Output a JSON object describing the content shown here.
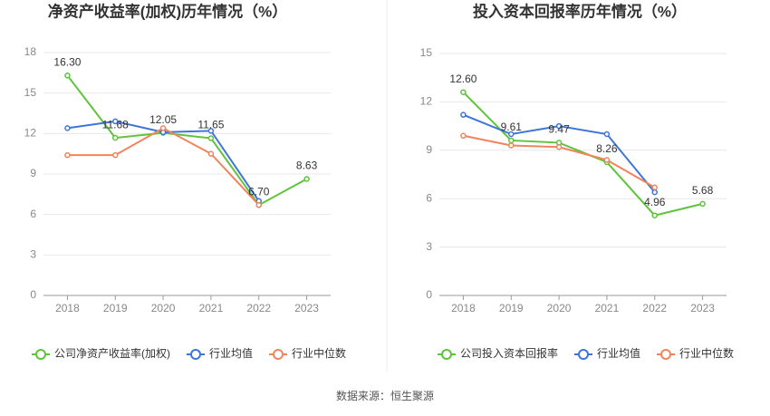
{
  "chart_data": [
    {
      "type": "line",
      "title": "净资产收益率(加权)历年情况（%）",
      "categories": [
        "2018",
        "2019",
        "2020",
        "2021",
        "2022",
        "2023"
      ],
      "ylim": [
        0,
        18
      ],
      "yticks": [
        0,
        3,
        6,
        9,
        12,
        15,
        18
      ],
      "grid": true,
      "series": [
        {
          "name": "公司净资产收益率(加权)",
          "color": "#5ec43a",
          "values": [
            16.3,
            11.68,
            12.05,
            11.65,
            6.7,
            8.63
          ],
          "value_labels": [
            "16.30",
            "11.68",
            "12.05",
            "11.65",
            "6.70",
            "8.63"
          ]
        },
        {
          "name": "行业均值",
          "color": "#3f74d9",
          "values": [
            12.4,
            12.9,
            12.1,
            12.2,
            7.0,
            null
          ]
        },
        {
          "name": "行业中位数",
          "color": "#f0845c",
          "values": [
            10.4,
            10.4,
            12.4,
            10.5,
            6.7,
            null
          ]
        }
      ]
    },
    {
      "type": "line",
      "title": "投入资本回报率历年情况（%）",
      "categories": [
        "2018",
        "2019",
        "2020",
        "2021",
        "2022",
        "2023"
      ],
      "ylim": [
        0,
        15
      ],
      "yticks": [
        0,
        3,
        6,
        9,
        12,
        15
      ],
      "grid": true,
      "series": [
        {
          "name": "公司投入资本回报率",
          "color": "#5ec43a",
          "values": [
            12.6,
            9.61,
            9.47,
            8.26,
            4.96,
            5.68
          ],
          "value_labels": [
            "12.60",
            "9.61",
            "9.47",
            "8.26",
            "4.96",
            "5.68"
          ]
        },
        {
          "name": "行业均值",
          "color": "#3f74d9",
          "values": [
            11.2,
            10.0,
            10.5,
            10.0,
            6.4,
            null
          ]
        },
        {
          "name": "行业中位数",
          "color": "#f0845c",
          "values": [
            9.9,
            9.3,
            9.2,
            8.4,
            6.7,
            null
          ]
        }
      ]
    }
  ],
  "source": "数据来源：恒生聚源"
}
